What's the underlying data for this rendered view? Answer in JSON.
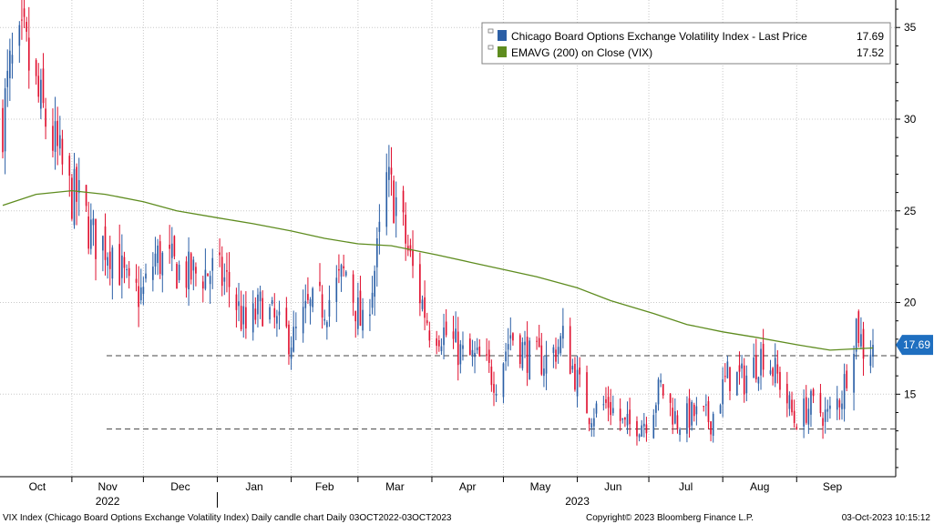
{
  "footer": {
    "left": "VIX Index (Chicago Board Options Exchange Volatility Index) Daily candle chart  Daily 03OCT2022-03OCT2023",
    "center": "Copyright© 2023 Bloomberg Finance L.P.",
    "right": "03-Oct-2023 10:15:12"
  },
  "colors": {
    "up": "#2b5fa6",
    "down": "#e0102f",
    "ema": "#5e8c1f",
    "last_price_tag": "#1f6fc0",
    "grid": "#c8c8c8"
  },
  "chart_data": {
    "type": "candlestick",
    "legend": [
      {
        "label": "Chicago Board Options Exchange Volatility Index - Last Price",
        "value": "17.69",
        "color": "#2b5fa6"
      },
      {
        "label": "EMAVG (200)  on Close (VIX)",
        "value": "17.52",
        "color": "#5e8c1f"
      }
    ],
    "ylim": [
      10.5,
      36.5
    ],
    "y_ticks": [
      15,
      20,
      25,
      30,
      35
    ],
    "x_month_labels": [
      "Oct",
      "Nov",
      "Dec",
      "Jan",
      "Feb",
      "Mar",
      "Apr",
      "May",
      "Jun",
      "Jul",
      "Aug",
      "Sep"
    ],
    "x_year_labels": [
      "2022",
      "2023"
    ],
    "last_price": 17.69,
    "reference_lines": [
      17.1,
      13.1
    ],
    "ema_200": [
      {
        "date": "2022-10-03",
        "value": 25.3
      },
      {
        "date": "2022-10-17",
        "value": 25.9
      },
      {
        "date": "2022-11-01",
        "value": 26.1
      },
      {
        "date": "2022-11-15",
        "value": 25.9
      },
      {
        "date": "2022-12-01",
        "value": 25.5
      },
      {
        "date": "2022-12-15",
        "value": 25.0
      },
      {
        "date": "2023-01-02",
        "value": 24.6
      },
      {
        "date": "2023-01-16",
        "value": 24.3
      },
      {
        "date": "2023-02-01",
        "value": 23.9
      },
      {
        "date": "2023-02-15",
        "value": 23.5
      },
      {
        "date": "2023-03-01",
        "value": 23.2
      },
      {
        "date": "2023-03-15",
        "value": 23.1
      },
      {
        "date": "2023-04-03",
        "value": 22.6
      },
      {
        "date": "2023-04-17",
        "value": 22.2
      },
      {
        "date": "2023-05-01",
        "value": 21.8
      },
      {
        "date": "2023-05-15",
        "value": 21.4
      },
      {
        "date": "2023-06-01",
        "value": 20.8
      },
      {
        "date": "2023-06-15",
        "value": 20.1
      },
      {
        "date": "2023-07-03",
        "value": 19.4
      },
      {
        "date": "2023-07-17",
        "value": 18.8
      },
      {
        "date": "2023-08-01",
        "value": 18.4
      },
      {
        "date": "2023-08-15",
        "value": 18.1
      },
      {
        "date": "2023-09-01",
        "value": 17.7
      },
      {
        "date": "2023-09-15",
        "value": 17.4
      },
      {
        "date": "2023-10-03",
        "value": 17.52
      }
    ],
    "close_path": [
      {
        "date": "2022-10-03",
        "value": 30.0
      },
      {
        "date": "2022-10-06",
        "value": 32.5
      },
      {
        "date": "2022-10-12",
        "value": 33.9
      },
      {
        "date": "2022-10-18",
        "value": 31.0
      },
      {
        "date": "2022-10-25",
        "value": 28.5
      },
      {
        "date": "2022-10-31",
        "value": 26.0
      },
      {
        "date": "2022-11-04",
        "value": 25.5
      },
      {
        "date": "2022-11-10",
        "value": 23.5
      },
      {
        "date": "2022-11-18",
        "value": 23.0
      },
      {
        "date": "2022-11-25",
        "value": 20.5
      },
      {
        "date": "2022-12-01",
        "value": 20.5
      },
      {
        "date": "2022-12-06",
        "value": 22.5
      },
      {
        "date": "2022-12-13",
        "value": 22.0
      },
      {
        "date": "2022-12-20",
        "value": 21.5
      },
      {
        "date": "2022-12-30",
        "value": 21.7
      },
      {
        "date": "2023-01-06",
        "value": 21.0
      },
      {
        "date": "2023-01-13",
        "value": 18.5
      },
      {
        "date": "2023-01-20",
        "value": 19.9
      },
      {
        "date": "2023-01-27",
        "value": 18.5
      },
      {
        "date": "2023-02-02",
        "value": 18.0
      },
      {
        "date": "2023-02-08",
        "value": 19.6
      },
      {
        "date": "2023-02-16",
        "value": 20.0
      },
      {
        "date": "2023-02-24",
        "value": 21.7
      },
      {
        "date": "2023-03-03",
        "value": 18.5
      },
      {
        "date": "2023-03-09",
        "value": 22.5
      },
      {
        "date": "2023-03-13",
        "value": 26.5
      },
      {
        "date": "2023-03-17",
        "value": 25.5
      },
      {
        "date": "2023-03-24",
        "value": 21.7
      },
      {
        "date": "2023-03-31",
        "value": 18.7
      },
      {
        "date": "2023-04-06",
        "value": 18.4
      },
      {
        "date": "2023-04-14",
        "value": 17.1
      },
      {
        "date": "2023-04-21",
        "value": 16.8
      },
      {
        "date": "2023-04-28",
        "value": 15.8
      },
      {
        "date": "2023-05-04",
        "value": 18.3
      },
      {
        "date": "2023-05-12",
        "value": 17.0
      },
      {
        "date": "2023-05-19",
        "value": 16.8
      },
      {
        "date": "2023-05-26",
        "value": 18.0
      },
      {
        "date": "2023-06-01",
        "value": 15.7
      },
      {
        "date": "2023-06-06",
        "value": 14.0
      },
      {
        "date": "2023-06-14",
        "value": 14.5
      },
      {
        "date": "2023-06-21",
        "value": 13.2
      },
      {
        "date": "2023-06-30",
        "value": 13.6
      },
      {
        "date": "2023-07-06",
        "value": 15.4
      },
      {
        "date": "2023-07-13",
        "value": 13.5
      },
      {
        "date": "2023-07-20",
        "value": 13.9
      },
      {
        "date": "2023-07-27",
        "value": 13.6
      },
      {
        "date": "2023-08-03",
        "value": 16.0
      },
      {
        "date": "2023-08-10",
        "value": 15.8
      },
      {
        "date": "2023-08-18",
        "value": 17.3
      },
      {
        "date": "2023-08-25",
        "value": 15.7
      },
      {
        "date": "2023-08-31",
        "value": 13.6
      },
      {
        "date": "2023-09-07",
        "value": 14.4
      },
      {
        "date": "2023-09-14",
        "value": 13.8
      },
      {
        "date": "2023-09-20",
        "value": 15.0
      },
      {
        "date": "2023-09-26",
        "value": 18.9
      },
      {
        "date": "2023-09-29",
        "value": 17.5
      },
      {
        "date": "2023-10-03",
        "value": 17.69
      }
    ]
  }
}
